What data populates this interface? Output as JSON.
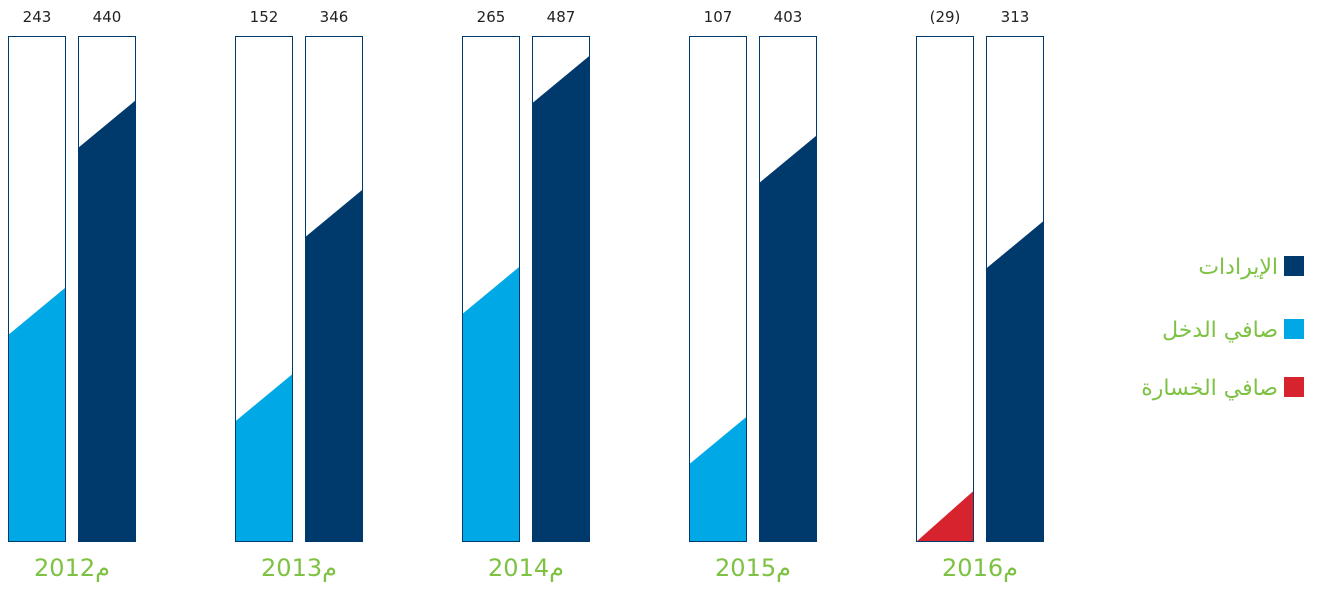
{
  "chart_data": {
    "type": "bar",
    "categories": [
      "2012م",
      "2013م",
      "2014م",
      "2015م",
      "2016م"
    ],
    "series": [
      {
        "name": "صافي الدخل",
        "color": "#00a8e6",
        "values": [
          243,
          152,
          265,
          107,
          -29
        ],
        "value_labels": [
          "243",
          "152",
          "265",
          "107",
          "(29)"
        ],
        "colors": [
          "#00a8e6",
          "#00a8e6",
          "#00a8e6",
          "#00a8e6",
          "#d7232d"
        ]
      },
      {
        "name": "الإيرادات",
        "color": "#003a6c",
        "values": [
          440,
          346,
          487,
          403,
          313
        ]
      }
    ],
    "loss_legend": {
      "name": "صافي الخسارة",
      "color": "#d7232d"
    },
    "ylim": [
      0,
      500
    ]
  }
}
